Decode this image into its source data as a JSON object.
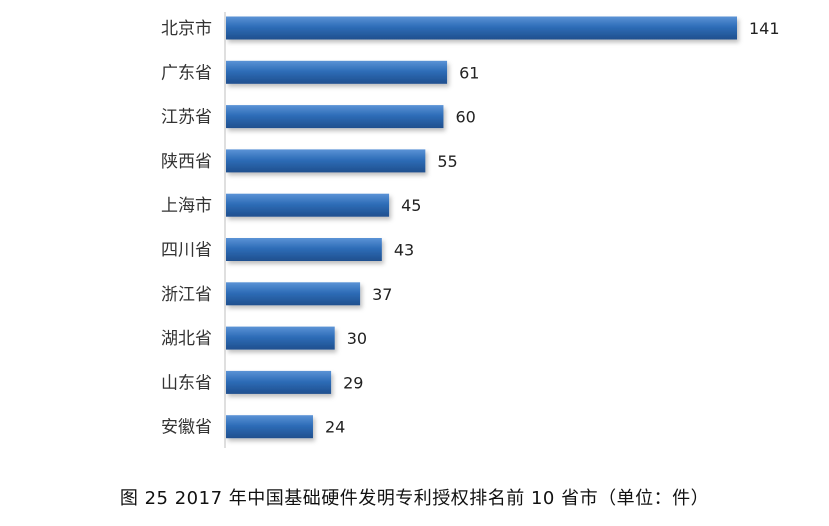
{
  "chart_data": {
    "type": "bar",
    "orientation": "horizontal",
    "categories": [
      "北京市",
      "广东省",
      "江苏省",
      "陕西省",
      "上海市",
      "四川省",
      "浙江省",
      "湖北省",
      "山东省",
      "安徽省"
    ],
    "values": [
      141,
      61,
      60,
      55,
      45,
      43,
      37,
      30,
      29,
      24
    ],
    "title": "",
    "xlabel": "",
    "ylabel": "",
    "grid": false,
    "legend": "none",
    "data_labels": true,
    "bar_color": "#2e6db8",
    "bar_color_light": "#5b93d6",
    "bar_color_dark": "#1f4f8e"
  },
  "caption": "图 25 2017 年中国基础硬件发明专利授权排名前 10 省市（单位：件）"
}
